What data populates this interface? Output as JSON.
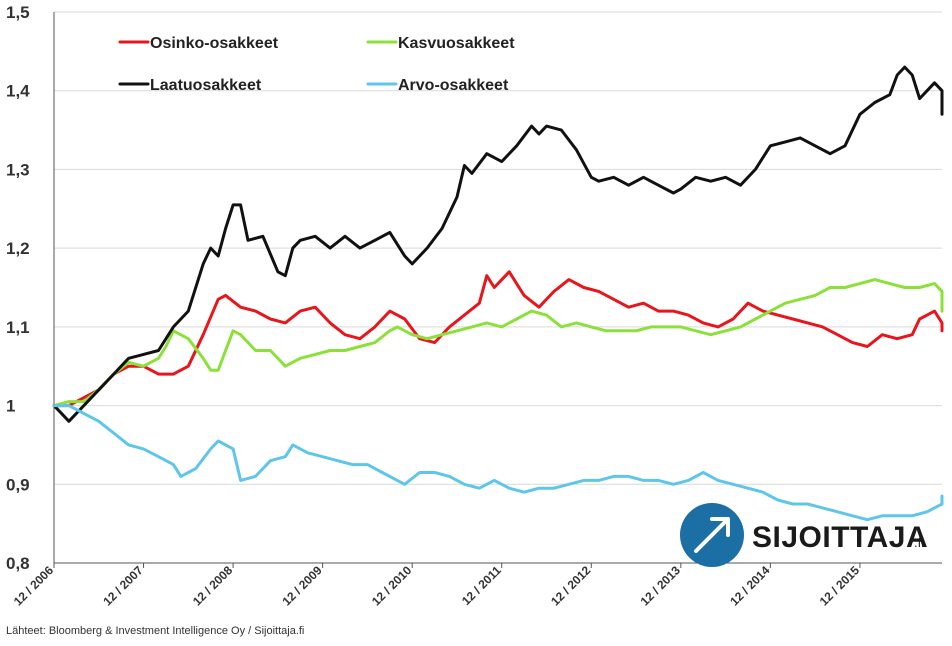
{
  "chart_data": {
    "type": "line",
    "title": "",
    "xlabel": "",
    "ylabel": "",
    "x_ticks": [
      "12 / 2006",
      "12 / 2007",
      "12 / 2008",
      "12 / 2009",
      "12 / 2010",
      "12 / 2011",
      "12 / 2012",
      "12 / 2013",
      "12 / 2014",
      "12 / 2015"
    ],
    "xlim": [
      "12 / 2006",
      "11 / 2016"
    ],
    "ylim": [
      0.8,
      1.5
    ],
    "y_ticks": [
      "0,8",
      "0,9",
      "1",
      "1,1",
      "1,2",
      "1,3",
      "1,4",
      "1,5"
    ],
    "grid": "horizontal",
    "legend_placement": "top-left",
    "series": [
      {
        "name": "Osinko-osakkeet",
        "color": "#e8161c",
        "points": [
          [
            "12 / 2006",
            1.0
          ],
          [
            "02 / 2007",
            1.0
          ],
          [
            "04 / 2007",
            1.01
          ],
          [
            "06 / 2007",
            1.02
          ],
          [
            "08 / 2007",
            1.04
          ],
          [
            "10 / 2007",
            1.05
          ],
          [
            "12 / 2007",
            1.05
          ],
          [
            "02 / 2008",
            1.04
          ],
          [
            "04 / 2008",
            1.04
          ],
          [
            "06 / 2008",
            1.05
          ],
          [
            "08 / 2008",
            1.09
          ],
          [
            "10 / 2008",
            1.135
          ],
          [
            "11 / 2008",
            1.14
          ],
          [
            "01 / 2009",
            1.125
          ],
          [
            "03 / 2009",
            1.12
          ],
          [
            "05 / 2009",
            1.11
          ],
          [
            "07 / 2009",
            1.105
          ],
          [
            "09 / 2009",
            1.12
          ],
          [
            "11 / 2009",
            1.125
          ],
          [
            "01 / 2010",
            1.105
          ],
          [
            "03 / 2010",
            1.09
          ],
          [
            "05 / 2010",
            1.085
          ],
          [
            "07 / 2010",
            1.1
          ],
          [
            "09 / 2010",
            1.12
          ],
          [
            "11 / 2010",
            1.11
          ],
          [
            "01 / 2011",
            1.085
          ],
          [
            "03 / 2011",
            1.08
          ],
          [
            "05 / 2011",
            1.1
          ],
          [
            "07 / 2011",
            1.115
          ],
          [
            "09 / 2011",
            1.13
          ],
          [
            "10 / 2011",
            1.165
          ],
          [
            "11 / 2011",
            1.15
          ],
          [
            "01 / 2012",
            1.17
          ],
          [
            "03 / 2012",
            1.14
          ],
          [
            "05 / 2012",
            1.125
          ],
          [
            "07 / 2012",
            1.145
          ],
          [
            "09 / 2012",
            1.16
          ],
          [
            "11 / 2012",
            1.15
          ],
          [
            "01 / 2013",
            1.145
          ],
          [
            "03 / 2013",
            1.135
          ],
          [
            "05 / 2013",
            1.125
          ],
          [
            "07 / 2013",
            1.13
          ],
          [
            "09 / 2013",
            1.12
          ],
          [
            "11 / 2013",
            1.12
          ],
          [
            "01 / 2014",
            1.115
          ],
          [
            "03 / 2014",
            1.105
          ],
          [
            "05 / 2014",
            1.1
          ],
          [
            "07 / 2014",
            1.11
          ],
          [
            "09 / 2014",
            1.13
          ],
          [
            "11 / 2014",
            1.12
          ],
          [
            "01 / 2015",
            1.115
          ],
          [
            "03 / 2015",
            1.11
          ],
          [
            "05 / 2015",
            1.105
          ],
          [
            "07 / 2015",
            1.1
          ],
          [
            "09 / 2015",
            1.09
          ],
          [
            "11 / 2015",
            1.08
          ],
          [
            "01 / 2016",
            1.075
          ],
          [
            "03 / 2016",
            1.09
          ],
          [
            "05 / 2016",
            1.085
          ],
          [
            "07 / 2016",
            1.09
          ],
          [
            "08 / 2016",
            1.11
          ],
          [
            "09 / 2016",
            1.115
          ],
          [
            "10 / 2016",
            1.12
          ],
          [
            "11 / 2016",
            1.105
          ],
          [
            "12 / 2016",
            1.1
          ],
          [
            "01 / 2017",
            1.095
          ]
        ]
      },
      {
        "name": "Kasvuosakkeet",
        "color": "#8be03a",
        "points": [
          [
            "12 / 2006",
            1.0
          ],
          [
            "02 / 2007",
            1.005
          ],
          [
            "04 / 2007",
            1.005
          ],
          [
            "06 / 2007",
            1.02
          ],
          [
            "08 / 2007",
            1.04
          ],
          [
            "10 / 2007",
            1.055
          ],
          [
            "12 / 2007",
            1.05
          ],
          [
            "02 / 2008",
            1.06
          ],
          [
            "03 / 2008",
            1.075
          ],
          [
            "04 / 2008",
            1.095
          ],
          [
            "06 / 2008",
            1.085
          ],
          [
            "08 / 2008",
            1.06
          ],
          [
            "09 / 2008",
            1.045
          ],
          [
            "10 / 2008",
            1.045
          ],
          [
            "11 / 2008",
            1.07
          ],
          [
            "12 / 2008",
            1.095
          ],
          [
            "01 / 2009",
            1.09
          ],
          [
            "03 / 2009",
            1.07
          ],
          [
            "05 / 2009",
            1.07
          ],
          [
            "07 / 2009",
            1.05
          ],
          [
            "09 / 2009",
            1.06
          ],
          [
            "11 / 2009",
            1.065
          ],
          [
            "01 / 2010",
            1.07
          ],
          [
            "03 / 2010",
            1.07
          ],
          [
            "05 / 2010",
            1.075
          ],
          [
            "07 / 2010",
            1.08
          ],
          [
            "09 / 2010",
            1.095
          ],
          [
            "10 / 2010",
            1.1
          ],
          [
            "12 / 2010",
            1.09
          ],
          [
            "02 / 2011",
            1.085
          ],
          [
            "04 / 2011",
            1.09
          ],
          [
            "06 / 2011",
            1.095
          ],
          [
            "08 / 2011",
            1.1
          ],
          [
            "10 / 2011",
            1.105
          ],
          [
            "12 / 2011",
            1.1
          ],
          [
            "02 / 2012",
            1.11
          ],
          [
            "04 / 2012",
            1.12
          ],
          [
            "06 / 2012",
            1.115
          ],
          [
            "08 / 2012",
            1.1
          ],
          [
            "10 / 2012",
            1.105
          ],
          [
            "12 / 2012",
            1.1
          ],
          [
            "02 / 2013",
            1.095
          ],
          [
            "04 / 2013",
            1.095
          ],
          [
            "06 / 2013",
            1.095
          ],
          [
            "08 / 2013",
            1.1
          ],
          [
            "10 / 2013",
            1.1
          ],
          [
            "12 / 2013",
            1.1
          ],
          [
            "02 / 2014",
            1.095
          ],
          [
            "04 / 2014",
            1.09
          ],
          [
            "06 / 2014",
            1.095
          ],
          [
            "08 / 2014",
            1.1
          ],
          [
            "10 / 2014",
            1.11
          ],
          [
            "12 / 2014",
            1.12
          ],
          [
            "02 / 2015",
            1.13
          ],
          [
            "04 / 2015",
            1.135
          ],
          [
            "06 / 2015",
            1.14
          ],
          [
            "08 / 2015",
            1.15
          ],
          [
            "10 / 2015",
            1.15
          ],
          [
            "12 / 2015",
            1.155
          ],
          [
            "02 / 2016",
            1.16
          ],
          [
            "04 / 2016",
            1.155
          ],
          [
            "06 / 2016",
            1.15
          ],
          [
            "08 / 2016",
            1.15
          ],
          [
            "10 / 2016",
            1.155
          ],
          [
            "11 / 2016",
            1.145
          ],
          [
            "12 / 2016",
            1.13
          ],
          [
            "01 / 2017",
            1.12
          ]
        ]
      },
      {
        "name": "Laatuosakkeet",
        "color": "#111111",
        "points": [
          [
            "12 / 2006",
            1.0
          ],
          [
            "01 / 2007",
            0.99
          ],
          [
            "02 / 2007",
            0.98
          ],
          [
            "04 / 2007",
            1.0
          ],
          [
            "06 / 2007",
            1.02
          ],
          [
            "08 / 2007",
            1.04
          ],
          [
            "10 / 2007",
            1.06
          ],
          [
            "12 / 2007",
            1.065
          ],
          [
            "02 / 2008",
            1.07
          ],
          [
            "04 / 2008",
            1.1
          ],
          [
            "06 / 2008",
            1.12
          ],
          [
            "08 / 2008",
            1.18
          ],
          [
            "09 / 2008",
            1.2
          ],
          [
            "10 / 2008",
            1.19
          ],
          [
            "11 / 2008",
            1.225
          ],
          [
            "12 / 2008",
            1.255
          ],
          [
            "01 / 2009",
            1.255
          ],
          [
            "02 / 2009",
            1.21
          ],
          [
            "04 / 2009",
            1.215
          ],
          [
            "06 / 2009",
            1.17
          ],
          [
            "07 / 2009",
            1.165
          ],
          [
            "08 / 2009",
            1.2
          ],
          [
            "09 / 2009",
            1.21
          ],
          [
            "11 / 2009",
            1.215
          ],
          [
            "01 / 2010",
            1.2
          ],
          [
            "03 / 2010",
            1.215
          ],
          [
            "05 / 2010",
            1.2
          ],
          [
            "07 / 2010",
            1.21
          ],
          [
            "09 / 2010",
            1.22
          ],
          [
            "11 / 2010",
            1.19
          ],
          [
            "12 / 2010",
            1.18
          ],
          [
            "02 / 2011",
            1.2
          ],
          [
            "04 / 2011",
            1.225
          ],
          [
            "06 / 2011",
            1.265
          ],
          [
            "07 / 2011",
            1.305
          ],
          [
            "08 / 2011",
            1.295
          ],
          [
            "10 / 2011",
            1.32
          ],
          [
            "12 / 2011",
            1.31
          ],
          [
            "02 / 2012",
            1.33
          ],
          [
            "04 / 2012",
            1.355
          ],
          [
            "05 / 2012",
            1.345
          ],
          [
            "06 / 2012",
            1.355
          ],
          [
            "08 / 2012",
            1.35
          ],
          [
            "10 / 2012",
            1.325
          ],
          [
            "12 / 2012",
            1.29
          ],
          [
            "01 / 2013",
            1.285
          ],
          [
            "03 / 2013",
            1.29
          ],
          [
            "05 / 2013",
            1.28
          ],
          [
            "07 / 2013",
            1.29
          ],
          [
            "09 / 2013",
            1.28
          ],
          [
            "11 / 2013",
            1.27
          ],
          [
            "12 / 2013",
            1.275
          ],
          [
            "02 / 2014",
            1.29
          ],
          [
            "04 / 2014",
            1.285
          ],
          [
            "06 / 2014",
            1.29
          ],
          [
            "08 / 2014",
            1.28
          ],
          [
            "10 / 2014",
            1.3
          ],
          [
            "12 / 2014",
            1.33
          ],
          [
            "02 / 2015",
            1.335
          ],
          [
            "04 / 2015",
            1.34
          ],
          [
            "06 / 2015",
            1.33
          ],
          [
            "08 / 2015",
            1.32
          ],
          [
            "10 / 2015",
            1.33
          ],
          [
            "12 / 2015",
            1.37
          ],
          [
            "02 / 2016",
            1.385
          ],
          [
            "04 / 2016",
            1.395
          ],
          [
            "05 / 2016",
            1.42
          ],
          [
            "06 / 2016",
            1.43
          ],
          [
            "07 / 2016",
            1.42
          ],
          [
            "08 / 2016",
            1.39
          ],
          [
            "09 / 2016",
            1.4
          ],
          [
            "10 / 2016",
            1.41
          ],
          [
            "11 / 2016",
            1.4
          ],
          [
            "12 / 2016",
            1.385
          ],
          [
            "01 / 2017",
            1.37
          ]
        ]
      },
      {
        "name": "Arvo-osakkeet",
        "color": "#5ec6ea",
        "points": [
          [
            "12 / 2006",
            1.0
          ],
          [
            "02 / 2007",
            1.0
          ],
          [
            "04 / 2007",
            0.99
          ],
          [
            "06 / 2007",
            0.98
          ],
          [
            "08 / 2007",
            0.965
          ],
          [
            "10 / 2007",
            0.95
          ],
          [
            "12 / 2007",
            0.945
          ],
          [
            "02 / 2008",
            0.935
          ],
          [
            "04 / 2008",
            0.925
          ],
          [
            "05 / 2008",
            0.91
          ],
          [
            "07 / 2008",
            0.92
          ],
          [
            "09 / 2008",
            0.945
          ],
          [
            "10 / 2008",
            0.955
          ],
          [
            "12 / 2008",
            0.945
          ],
          [
            "01 / 2009",
            0.905
          ],
          [
            "03 / 2009",
            0.91
          ],
          [
            "05 / 2009",
            0.93
          ],
          [
            "07 / 2009",
            0.935
          ],
          [
            "08 / 2009",
            0.95
          ],
          [
            "10 / 2009",
            0.94
          ],
          [
            "12 / 2009",
            0.935
          ],
          [
            "02 / 2010",
            0.93
          ],
          [
            "04 / 2010",
            0.925
          ],
          [
            "06 / 2010",
            0.925
          ],
          [
            "08 / 2010",
            0.915
          ],
          [
            "10 / 2010",
            0.905
          ],
          [
            "11 / 2010",
            0.9
          ],
          [
            "01 / 2011",
            0.915
          ],
          [
            "03 / 2011",
            0.915
          ],
          [
            "05 / 2011",
            0.91
          ],
          [
            "07 / 2011",
            0.9
          ],
          [
            "09 / 2011",
            0.895
          ],
          [
            "11 / 2011",
            0.905
          ],
          [
            "01 / 2012",
            0.895
          ],
          [
            "03 / 2012",
            0.89
          ],
          [
            "05 / 2012",
            0.895
          ],
          [
            "07 / 2012",
            0.895
          ],
          [
            "09 / 2012",
            0.9
          ],
          [
            "11 / 2012",
            0.905
          ],
          [
            "01 / 2013",
            0.905
          ],
          [
            "03 / 2013",
            0.91
          ],
          [
            "05 / 2013",
            0.91
          ],
          [
            "07 / 2013",
            0.905
          ],
          [
            "09 / 2013",
            0.905
          ],
          [
            "11 / 2013",
            0.9
          ],
          [
            "01 / 2014",
            0.905
          ],
          [
            "03 / 2014",
            0.915
          ],
          [
            "05 / 2014",
            0.905
          ],
          [
            "07 / 2014",
            0.9
          ],
          [
            "09 / 2014",
            0.895
          ],
          [
            "11 / 2014",
            0.89
          ],
          [
            "01 / 2015",
            0.88
          ],
          [
            "03 / 2015",
            0.875
          ],
          [
            "05 / 2015",
            0.875
          ],
          [
            "07 / 2015",
            0.87
          ],
          [
            "09 / 2015",
            0.865
          ],
          [
            "11 / 2015",
            0.86
          ],
          [
            "01 / 2016",
            0.855
          ],
          [
            "03 / 2016",
            0.86
          ],
          [
            "05 / 2016",
            0.86
          ],
          [
            "07 / 2016",
            0.86
          ],
          [
            "09 / 2016",
            0.865
          ],
          [
            "10 / 2016",
            0.87
          ],
          [
            "11 / 2016",
            0.875
          ],
          [
            "12 / 2016",
            0.88
          ],
          [
            "01 / 2017",
            0.885
          ]
        ]
      }
    ]
  },
  "source_text": "Lähteet: Bloomberg & Investment Intelligence Oy / Sijoittaja.fi",
  "brand": {
    "name": "SIJOITTAJA",
    "suffix": ".fi",
    "logo_icon": "arrow-up-right-circle-icon",
    "logo_color": "#1b6fa5"
  },
  "colors": {
    "grid": "#d9d9d9",
    "axis": "#555555",
    "text": "#333333"
  }
}
